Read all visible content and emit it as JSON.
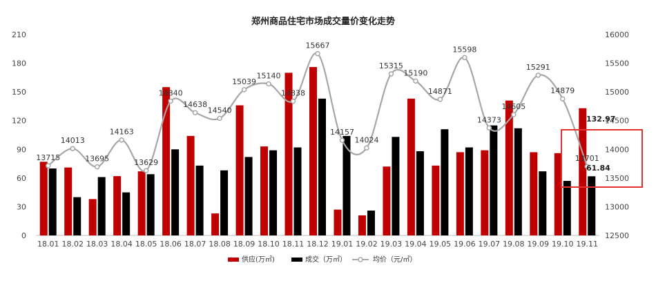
{
  "chart_data": {
    "type": "bar",
    "title": "郑州商品住宅市场成交量价变化走势",
    "categories": [
      "18.01",
      "18.02",
      "18.03",
      "18.04",
      "18.05",
      "18.06",
      "18.07",
      "18.08",
      "18.09",
      "18.10",
      "18.11",
      "18.12",
      "19.01",
      "19.02",
      "19.03",
      "19.04",
      "19.05",
      "19.06",
      "19.07",
      "19.08",
      "19.09",
      "19.10",
      "19.11"
    ],
    "series": [
      {
        "name": "供应(万㎡)",
        "type": "bar",
        "axis": "left",
        "color": "#c00000",
        "values": [
          77,
          71,
          38,
          62,
          67,
          155,
          104,
          23,
          136,
          93,
          170,
          176,
          27,
          21,
          72,
          143,
          73,
          87,
          89,
          141,
          87,
          86,
          132.97
        ]
      },
      {
        "name": "成交（万㎡）",
        "type": "bar",
        "axis": "left",
        "color": "#000000",
        "values": [
          70,
          40,
          61,
          45,
          64,
          90,
          73,
          68,
          82,
          89,
          92,
          143,
          104,
          26,
          103,
          88,
          111,
          92,
          115,
          112,
          67,
          57,
          61.84
        ]
      },
      {
        "name": "均价（元/㎡）",
        "type": "line",
        "axis": "right",
        "color": "#a6a6a6",
        "values": [
          13715,
          14013,
          13695,
          14163,
          13629,
          14840,
          14638,
          14540,
          15039,
          15140,
          14838,
          15667,
          14157,
          14024,
          15315,
          15190,
          14871,
          15598,
          14373,
          14605,
          15291,
          14879,
          13701
        ]
      }
    ],
    "y_left": {
      "min": 0,
      "max": 210,
      "ticks": [
        0,
        30,
        60,
        90,
        120,
        150,
        180,
        210
      ]
    },
    "y_right": {
      "min": 12500,
      "max": 16000,
      "ticks": [
        12500,
        13000,
        13500,
        14000,
        14500,
        15000,
        15500,
        16000
      ]
    },
    "price_labels": [
      "13715",
      "14013",
      "13695",
      "14163",
      "13629",
      "14840",
      "14638",
      "14540",
      "15039",
      "15140",
      "14838",
      "15667",
      "14157",
      "14024",
      "15315",
      "15190",
      "14871",
      "15598",
      "14373",
      "14605",
      "15291",
      "14879",
      "13701"
    ],
    "annotations": {
      "supply_last": "132.97",
      "deal_last": "61.84"
    },
    "legend": [
      "供应(万㎡)",
      "成交（万㎡）",
      "均价（元/㎡）"
    ],
    "legend_position": "bottom",
    "highlight_color": "#e23030"
  }
}
